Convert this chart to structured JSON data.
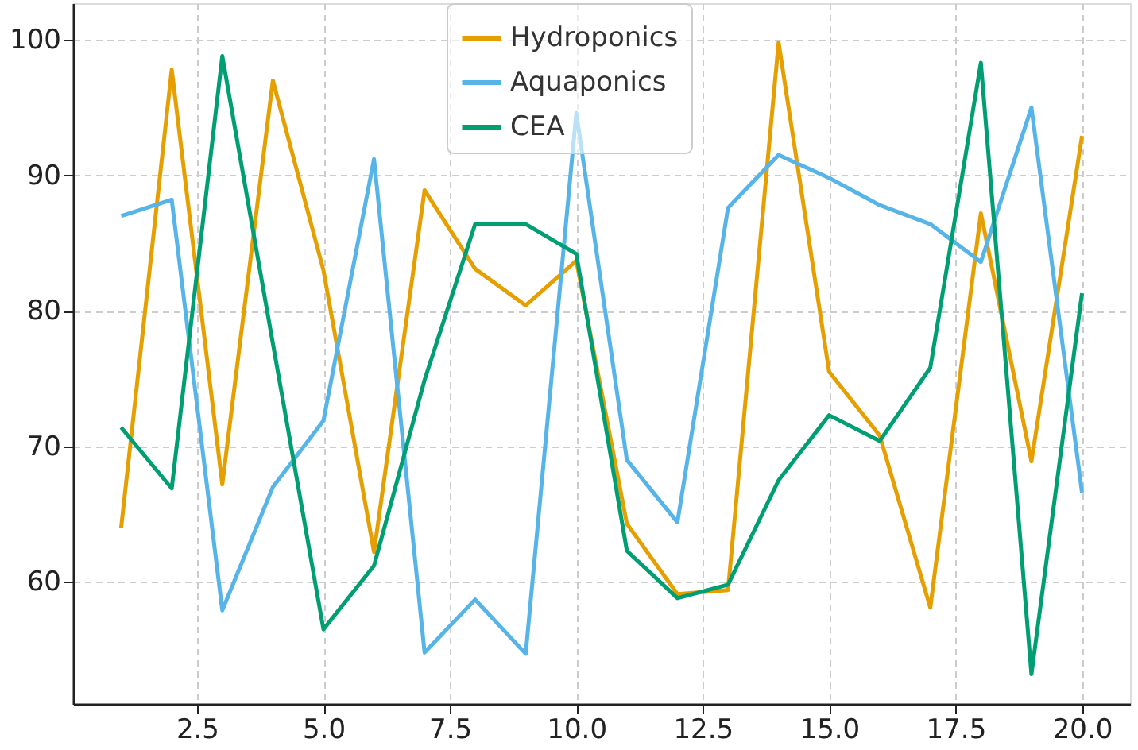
{
  "chart_data": {
    "type": "line",
    "x": [
      1,
      2,
      3,
      4,
      5,
      6,
      7,
      8,
      9,
      10,
      11,
      12,
      13,
      14,
      15,
      16,
      17,
      18,
      19,
      20
    ],
    "series": [
      {
        "name": "Hydroponics",
        "color": "#e69f00",
        "values": [
          64,
          97.8,
          67.2,
          97,
          83,
          62.2,
          88.9,
          83.1,
          80.4,
          83.7,
          64.3,
          59.1,
          59.4,
          99.8,
          75.5,
          70.8,
          58.1,
          87.2,
          68.9,
          92.9
        ]
      },
      {
        "name": "Aquaponics",
        "color": "#56b4e9",
        "values": [
          87,
          88.2,
          57.9,
          67,
          71.9,
          91.2,
          54.8,
          58.7,
          54.7,
          94.6,
          69,
          64.4,
          87.6,
          91.5,
          89.8,
          87.8,
          86.4,
          83.6,
          95,
          66.6
        ]
      },
      {
        "name": "CEA",
        "color": "#009e73",
        "values": [
          71.4,
          66.9,
          98.8,
          77.6,
          56.5,
          61.2,
          74.9,
          86.4,
          86.4,
          84.2,
          62.3,
          58.8,
          59.8,
          67.5,
          72.3,
          70.4,
          75.8,
          98.3,
          53.2,
          81.3
        ]
      }
    ],
    "xlim": [
      0.05,
      20.95
    ],
    "xticks": [
      2.5,
      {
        "value": 5,
        "label": "5.0"
      },
      7.5,
      {
        "value": 10,
        "label": "10.0"
      },
      12.5,
      {
        "value": 15,
        "label": "15.0"
      },
      17.5,
      {
        "value": 20,
        "label": "20.0"
      }
    ],
    "ylim": [
      51,
      102.7
    ],
    "yticks": [
      60,
      70,
      80,
      90,
      100
    ],
    "grid": true,
    "legend": "top",
    "line_style": "solid",
    "marker": "none"
  }
}
